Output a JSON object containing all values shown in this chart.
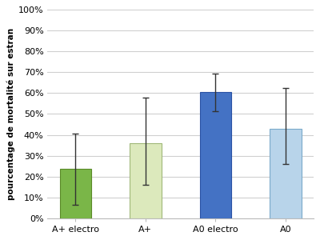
{
  "categories": [
    "A+ electro",
    "A+",
    "A0 electro",
    "A0"
  ],
  "values": [
    23.5,
    36.0,
    60.5,
    43.0
  ],
  "errors_upper": [
    17.0,
    22.0,
    9.0,
    19.5
  ],
  "errors_lower": [
    17.0,
    20.0,
    9.0,
    17.0
  ],
  "bar_colors": [
    "#7ab648",
    "#dce9bc",
    "#4472c4",
    "#b8d4ea"
  ],
  "bar_edgecolors": [
    "#5a8a28",
    "#a0b878",
    "#2a52a4",
    "#7aaaca"
  ],
  "ylabel": "pourcentage de mortalité sur estran",
  "ylim": [
    0,
    100
  ],
  "yticks": [
    0,
    10,
    20,
    30,
    40,
    50,
    60,
    70,
    80,
    90,
    100
  ],
  "ytick_labels": [
    "0%",
    "10%",
    "20%",
    "30%",
    "40%",
    "50%",
    "60%",
    "70%",
    "80%",
    "90%",
    "100%"
  ],
  "plot_bg_color": "#ffffff",
  "fig_bg_color": "#ffffff",
  "grid_color": "#d0d0d0",
  "bar_width": 0.45,
  "ylabel_fontsize": 7.5,
  "tick_fontsize": 8,
  "xlabel_fontsize": 8,
  "ecolor": "#333333",
  "elinewidth": 1.0,
  "capsize": 3,
  "capthick": 1.0
}
